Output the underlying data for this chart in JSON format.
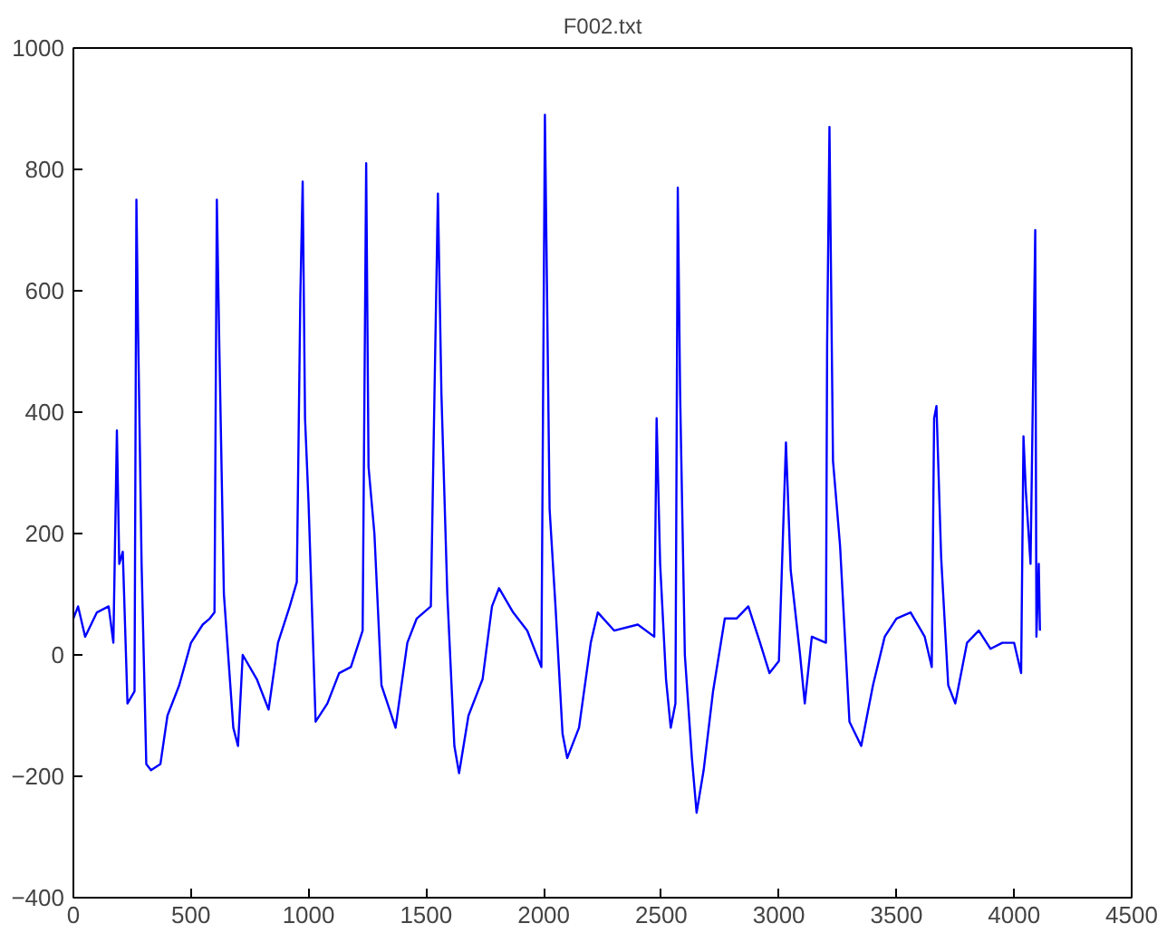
{
  "chart_data": {
    "type": "line",
    "title": "F002.txt",
    "xlim": [
      0,
      4500
    ],
    "ylim": [
      -400,
      1000
    ],
    "xticks": [
      0,
      500,
      1000,
      1500,
      2000,
      2500,
      3000,
      3500,
      4000,
      4500
    ],
    "yticks": [
      -400,
      -200,
      0,
      200,
      400,
      600,
      800,
      1000
    ],
    "grid": false,
    "marker": "none",
    "line_style": "solid",
    "series": [
      {
        "color": "#0000ff",
        "x": [
          0,
          20,
          50,
          100,
          150,
          170,
          185,
          195,
          210,
          230,
          260,
          268,
          275,
          290,
          310,
          330,
          370,
          400,
          450,
          500,
          550,
          580,
          600,
          610,
          620,
          640,
          680,
          700,
          720,
          780,
          830,
          870,
          920,
          950,
          965,
          975,
          985,
          1000,
          1030,
          1080,
          1130,
          1180,
          1230,
          1245,
          1255,
          1280,
          1310,
          1370,
          1420,
          1460,
          1520,
          1550,
          1565,
          1590,
          1620,
          1640,
          1680,
          1740,
          1780,
          1810,
          1870,
          1930,
          1990,
          2005,
          2025,
          2050,
          2080,
          2100,
          2150,
          2200,
          2230,
          2300,
          2400,
          2470,
          2480,
          2495,
          2520,
          2540,
          2560,
          2570,
          2580,
          2600,
          2630,
          2650,
          2680,
          2720,
          2770,
          2820,
          2870,
          2920,
          2960,
          3000,
          3030,
          3050,
          3090,
          3110,
          3140,
          3200,
          3205,
          3215,
          3230,
          3260,
          3300,
          3350,
          3400,
          3450,
          3500,
          3560,
          3620,
          3650,
          3660,
          3670,
          3690,
          3720,
          3750,
          3800,
          3850,
          3900,
          3950,
          4000,
          4030,
          4040,
          4050,
          4070,
          4090,
          4095,
          4105,
          4110
        ],
        "values": [
          60,
          80,
          30,
          70,
          80,
          20,
          370,
          150,
          170,
          -80,
          -60,
          750,
          540,
          150,
          -180,
          -190,
          -180,
          -100,
          -50,
          20,
          50,
          60,
          70,
          750,
          520,
          100,
          -120,
          -150,
          0,
          -40,
          -90,
          20,
          80,
          120,
          590,
          780,
          390,
          250,
          -110,
          -80,
          -30,
          -20,
          40,
          810,
          310,
          200,
          -50,
          -120,
          20,
          60,
          80,
          760,
          430,
          100,
          -150,
          -195,
          -100,
          -40,
          80,
          110,
          70,
          40,
          -20,
          890,
          240,
          80,
          -130,
          -170,
          -120,
          20,
          70,
          40,
          50,
          30,
          390,
          150,
          -40,
          -120,
          -80,
          770,
          430,
          0,
          -170,
          -260,
          -190,
          -60,
          60,
          60,
          80,
          20,
          -30,
          -10,
          350,
          140,
          0,
          -80,
          30,
          20,
          510,
          870,
          320,
          180,
          -110,
          -150,
          -50,
          30,
          60,
          70,
          30,
          -20,
          390,
          410,
          160,
          -50,
          -80,
          20,
          40,
          10,
          20,
          20,
          -30,
          360,
          270,
          150,
          700,
          30,
          150,
          40
        ]
      }
    ]
  }
}
